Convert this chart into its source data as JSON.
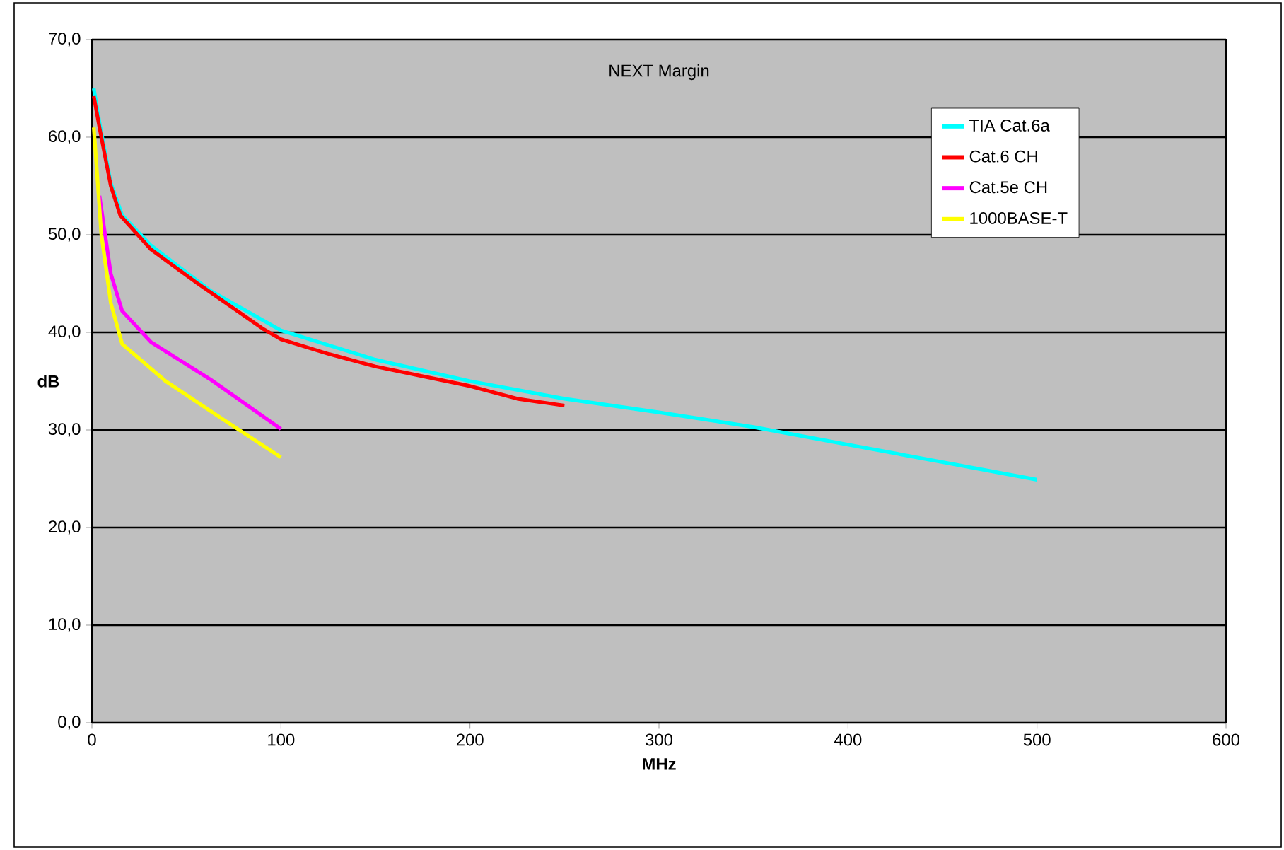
{
  "chart_data": {
    "type": "line",
    "title": "NEXT Margin",
    "xlabel": "MHz",
    "ylabel": "dB",
    "xlim": [
      0,
      600
    ],
    "xticks": [
      0,
      100,
      200,
      300,
      400,
      500,
      600
    ],
    "ylim": [
      0,
      70
    ],
    "yticks": [
      {
        "value": 0,
        "label": "0,0"
      },
      {
        "value": 10,
        "label": "10,0"
      },
      {
        "value": 20,
        "label": "20,0"
      },
      {
        "value": 30,
        "label": "30,0"
      },
      {
        "value": 40,
        "label": "40,0"
      },
      {
        "value": 50,
        "label": "50,0"
      },
      {
        "value": 60,
        "label": "60,0"
      },
      {
        "value": 70,
        "label": "70,0"
      }
    ],
    "grid": "y",
    "legend": "top right",
    "marker": "none",
    "line_style": "solid",
    "series": [
      {
        "name": "TIA Cat.6a",
        "color": "#00ffff",
        "x": [
          1,
          4,
          10,
          16,
          31.25,
          62.5,
          100,
          150,
          200,
          250,
          300,
          350,
          400,
          450,
          500
        ],
        "values": [
          65,
          61.5,
          55.3,
          52,
          48.9,
          44.3,
          40.2,
          37.2,
          35,
          33.2,
          31.8,
          30.3,
          28.5,
          26.7,
          24.9
        ]
      },
      {
        "name": "Cat.6 CH",
        "color": "#ff0000",
        "x": [
          1,
          4,
          10,
          15,
          31.25,
          56,
          91,
          100,
          125,
          150,
          200,
          225,
          250
        ],
        "values": [
          64.2,
          61,
          55,
          52,
          48.5,
          45,
          40.3,
          39.3,
          37.8,
          36.5,
          34.5,
          33.2,
          32.5
        ]
      },
      {
        "name": "Cat.5e CH",
        "color": "#ff00ff",
        "x": [
          4,
          10,
          16,
          31.25,
          62.5,
          100
        ],
        "values": [
          54,
          46,
          42.2,
          39,
          35.2,
          30.1
        ]
      },
      {
        "name": "1000BASE-T",
        "color": "#ffff00",
        "x": [
          1,
          5,
          10,
          16,
          39,
          70,
          100
        ],
        "values": [
          61,
          50,
          43,
          38.8,
          35,
          31,
          27.2
        ]
      }
    ]
  }
}
